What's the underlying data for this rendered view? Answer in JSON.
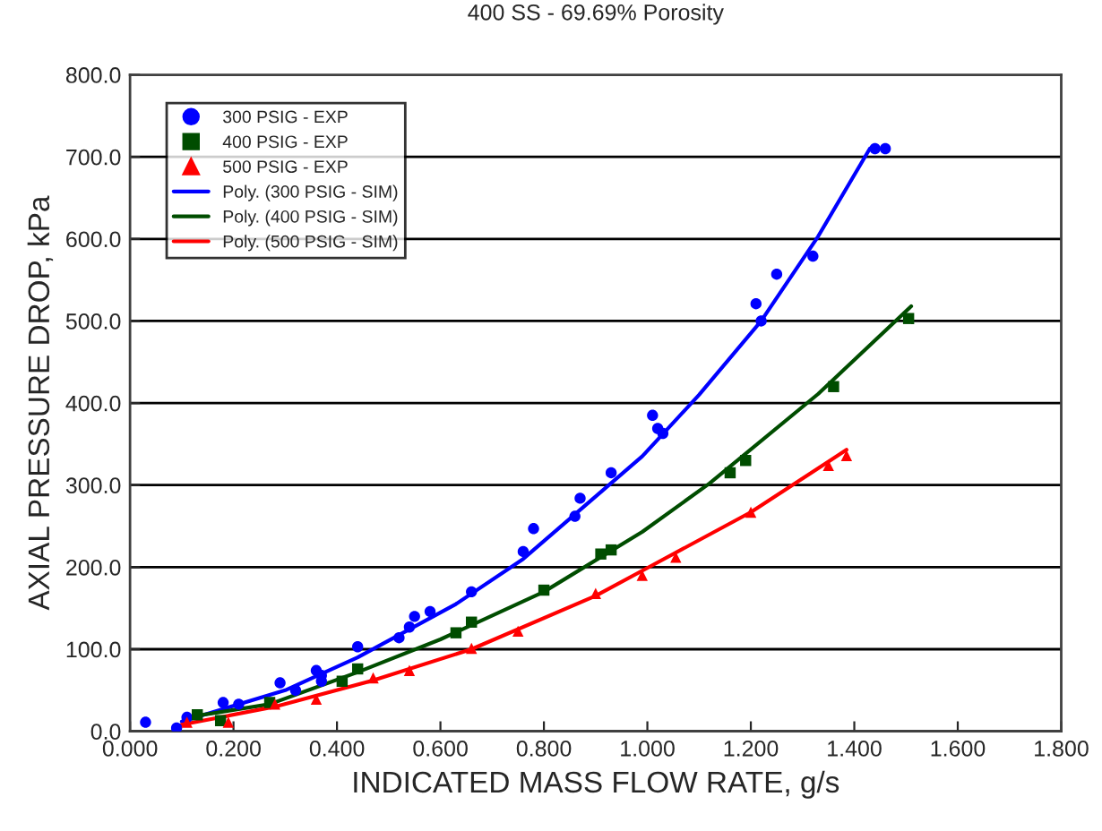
{
  "chart_data": {
    "type": "scatter",
    "title": "400 SS - 69.69% Porosity",
    "xlabel": "INDICATED MASS FLOW RATE, g/s",
    "ylabel": "AXIAL PRESSURE DROP, kPa",
    "xlim": [
      0,
      1.8
    ],
    "ylim": [
      0,
      800
    ],
    "xticks": [
      {
        "value": 0,
        "label": "0.000"
      },
      {
        "value": 0.2,
        "label": "0.200"
      },
      {
        "value": 0.4,
        "label": "0.400"
      },
      {
        "value": 0.6,
        "label": "0.600"
      },
      {
        "value": 0.8,
        "label": "0.800"
      },
      {
        "value": 1.0,
        "label": "1.000"
      },
      {
        "value": 1.2,
        "label": "1.200"
      },
      {
        "value": 1.4,
        "label": "1.400"
      },
      {
        "value": 1.6,
        "label": "1.600"
      },
      {
        "value": 1.8,
        "label": "1.800"
      }
    ],
    "yticks": [
      {
        "value": 0,
        "label": "0.0"
      },
      {
        "value": 100,
        "label": "100.0"
      },
      {
        "value": 200,
        "label": "200.0"
      },
      {
        "value": 300,
        "label": "300.0"
      },
      {
        "value": 400,
        "label": "400.0"
      },
      {
        "value": 500,
        "label": "500.0"
      },
      {
        "value": 600,
        "label": "600.0"
      },
      {
        "value": 700,
        "label": "700.0"
      },
      {
        "value": 800,
        "label": "800.0"
      }
    ],
    "grid": "y",
    "legend": "top left",
    "series": [
      {
        "name": "300 PSIG - EXP",
        "marker": "circle",
        "color": "#0000ff",
        "x": [
          0.03,
          0.09,
          0.11,
          0.18,
          0.21,
          0.29,
          0.32,
          0.36,
          0.37,
          0.37,
          0.44,
          0.52,
          0.54,
          0.55,
          0.58,
          0.66,
          0.76,
          0.78,
          0.86,
          0.87,
          0.93,
          1.01,
          1.02,
          1.03,
          1.21,
          1.22,
          1.25,
          1.32,
          1.44,
          1.46
        ],
        "values": [
          11,
          4,
          17,
          35,
          33,
          59,
          50,
          74,
          68,
          61,
          103,
          114,
          127,
          140,
          146,
          170,
          219,
          247,
          262,
          284,
          315,
          385,
          369,
          363,
          521,
          500,
          557,
          579,
          710,
          710
        ]
      },
      {
        "name": "400 PSIG - EXP",
        "marker": "square",
        "color": "#004d00",
        "x": [
          0.13,
          0.175,
          0.27,
          0.41,
          0.44,
          0.63,
          0.66,
          0.8,
          0.91,
          0.93,
          1.16,
          1.19,
          1.36,
          1.505
        ],
        "values": [
          20,
          13,
          35,
          61,
          76,
          120,
          133,
          172,
          216,
          221,
          315,
          330,
          420,
          503
        ]
      },
      {
        "name": "500 PSIG - EXP",
        "marker": "triangle",
        "color": "#ff0000",
        "x": [
          0.11,
          0.19,
          0.28,
          0.36,
          0.47,
          0.54,
          0.66,
          0.75,
          0.9,
          0.99,
          1.055,
          1.2,
          1.35,
          1.385
        ],
        "values": [
          11,
          11,
          33,
          39,
          65,
          74,
          101,
          122,
          168,
          190,
          212,
          267,
          324,
          336
        ]
      },
      {
        "name": "Poly. (300 PSIG - SIM)",
        "type": "line",
        "line_style": "solid",
        "color": "#0000ff",
        "x": [
          0.1,
          0.3,
          0.44,
          0.63,
          0.76,
          0.99,
          1.1,
          1.22,
          1.33,
          1.43
        ],
        "values": [
          12,
          50,
          90,
          155,
          210,
          335,
          410,
          500,
          603,
          710
        ]
      },
      {
        "name": "Poly. (400 PSIG - SIM)",
        "type": "line",
        "line_style": "solid",
        "color": "#004d00",
        "x": [
          0.12,
          0.27,
          0.44,
          0.6,
          0.8,
          0.99,
          1.12,
          1.33,
          1.51
        ],
        "values": [
          18,
          33,
          72,
          112,
          170,
          243,
          302,
          411,
          518
        ]
      },
      {
        "name": "Poly. (500 PSIG - SIM)",
        "type": "line",
        "line_style": "solid",
        "color": "#ff0000",
        "x": [
          0.1,
          0.28,
          0.47,
          0.66,
          0.9,
          1.0,
          1.2,
          1.385
        ],
        "values": [
          8,
          30,
          62,
          100,
          165,
          199,
          267,
          343
        ]
      }
    ]
  }
}
